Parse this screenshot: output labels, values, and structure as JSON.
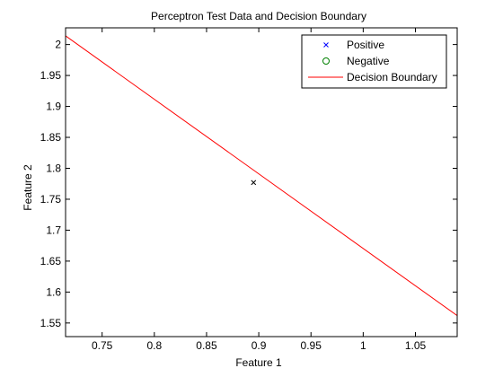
{
  "chart_data": {
    "type": "scatter",
    "title": "Perceptron Test Data and Decision Boundary",
    "xlabel": "Feature 1",
    "ylabel": "Feature 2",
    "xlim": [
      0.715,
      1.09
    ],
    "ylim": [
      1.528,
      2.027
    ],
    "xticks": [
      0.75,
      0.8,
      0.85,
      0.9,
      0.95,
      1,
      1.05
    ],
    "xtick_labels": [
      "0.75",
      "0.8",
      "0.85",
      "0.9",
      "0.95",
      "1",
      "1.05"
    ],
    "yticks": [
      1.55,
      1.6,
      1.65,
      1.7,
      1.75,
      1.8,
      1.85,
      1.9,
      1.95,
      2
    ],
    "ytick_labels": [
      "1.55",
      "1.6",
      "1.65",
      "1.7",
      "1.75",
      "1.8",
      "1.85",
      "1.9",
      "1.95",
      "2"
    ],
    "grid": false,
    "legend_position": "top-right",
    "series": [
      {
        "name": "Positive",
        "kind": "scatter",
        "marker": "x",
        "color": "#0000ff",
        "points": [],
        "marker_color": "#000000"
      },
      {
        "name": "Negative",
        "kind": "scatter",
        "marker": "circle",
        "color": "#008000",
        "points": []
      },
      {
        "name": "Decision Boundary",
        "kind": "line",
        "color": "#ff0000",
        "points": [
          [
            0.715,
            2.014
          ],
          [
            1.09,
            1.562
          ]
        ]
      }
    ],
    "extra_points": [
      {
        "x": 0.895,
        "y": 1.777,
        "marker": "x",
        "color": "#000000"
      }
    ]
  }
}
